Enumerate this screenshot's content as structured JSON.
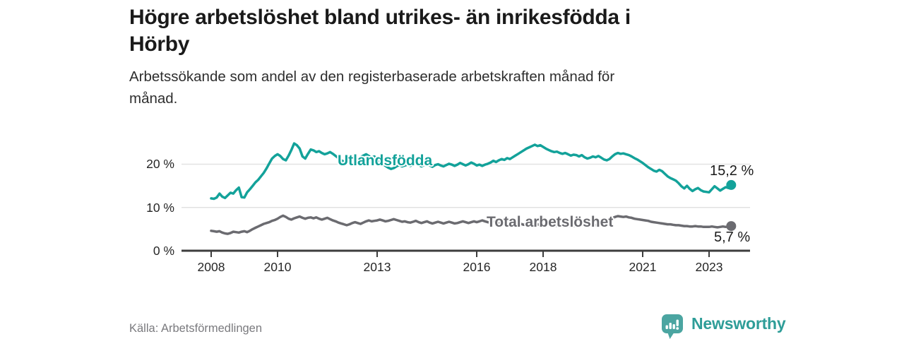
{
  "header": {
    "title_lines": [
      "Högre arbetslöshet bland utrikes- än inrikesfödda i",
      "Hörby"
    ],
    "subtitle_lines": [
      "Arbetssökande som andel av den registerbaserade arbetskraften månad för",
      "månad."
    ]
  },
  "footer": {
    "source": "Källa: Arbetsförmedlingen",
    "brand": "Newsworthy"
  },
  "colors": {
    "foreign_born_line": "#13a29a",
    "total_line": "#6b6b70",
    "axis": "#3d3d3d",
    "gridline": "#e2e2e2",
    "text_dark": "#1a1a1a",
    "brand_icon": "#4ba5a1",
    "brand_text": "#2e9d98"
  },
  "chart_data": {
    "type": "line",
    "title": "Högre arbetslöshet bland utrikes- än inrikesfödda i Hörby",
    "subtitle": "Arbetssökande som andel av den registerbaserade arbetskraften månad för månad.",
    "x_unit": "month",
    "x_start_year": 2008,
    "x_end_label": "2023 (sep)",
    "x_ticks": [
      2008,
      2010,
      2013,
      2016,
      2018,
      2021,
      2023
    ],
    "y_ticks": [
      {
        "label": "0 %",
        "value": 0
      },
      {
        "label": "10 %",
        "value": 10
      },
      {
        "label": "20 %",
        "value": 20
      }
    ],
    "ylim": [
      0,
      26
    ],
    "grid": "horizontal-only",
    "legend_position": "inline-labels",
    "series": [
      {
        "name": "Utlandsfödda",
        "color": "#13a29a",
        "end_value_label": "15,2 %",
        "values": [
          12.1,
          12.0,
          12.3,
          13.2,
          12.5,
          12.2,
          12.8,
          13.4,
          13.2,
          14.0,
          14.6,
          12.4,
          12.3,
          13.5,
          14.2,
          15.0,
          15.8,
          16.4,
          17.2,
          18.0,
          19.0,
          20.2,
          21.3,
          21.9,
          22.3,
          21.9,
          21.2,
          20.9,
          22.0,
          23.3,
          24.8,
          24.4,
          23.6,
          21.8,
          21.3,
          22.4,
          23.4,
          23.2,
          22.8,
          23.0,
          22.6,
          22.3,
          22.5,
          22.8,
          22.4,
          21.9,
          21.4,
          20.9,
          20.6,
          20.3,
          20.5,
          21.0,
          20.7,
          21.2,
          21.6,
          22.0,
          22.3,
          21.9,
          21.5,
          21.8,
          21.2,
          20.6,
          20.0,
          19.6,
          19.2,
          18.9,
          19.1,
          19.5,
          19.8,
          19.5,
          19.7,
          19.9,
          19.6,
          19.9,
          20.2,
          19.8,
          19.5,
          19.8,
          20.1,
          19.7,
          19.4,
          19.8,
          20.0,
          19.7,
          19.5,
          19.8,
          20.1,
          19.9,
          19.6,
          19.9,
          20.3,
          20.0,
          19.7,
          20.0,
          20.4,
          20.1,
          19.7,
          19.9,
          19.6,
          19.9,
          20.1,
          20.4,
          20.8,
          20.5,
          20.9,
          21.2,
          21.0,
          21.4,
          21.2,
          21.6,
          22.0,
          22.4,
          22.8,
          23.2,
          23.6,
          23.9,
          24.2,
          24.5,
          24.2,
          24.4,
          24.0,
          23.6,
          23.3,
          23.0,
          22.8,
          22.9,
          22.6,
          22.4,
          22.6,
          22.3,
          22.0,
          22.2,
          22.1,
          21.8,
          22.1,
          21.6,
          21.3,
          21.5,
          21.8,
          21.6,
          21.9,
          21.5,
          21.1,
          20.9,
          21.2,
          21.8,
          22.3,
          22.6,
          22.4,
          22.5,
          22.3,
          22.1,
          21.8,
          21.4,
          21.1,
          20.7,
          20.3,
          19.8,
          19.3,
          18.9,
          18.5,
          18.3,
          18.7,
          18.4,
          17.8,
          17.2,
          16.8,
          16.5,
          16.2,
          15.6,
          14.9,
          14.4,
          15.0,
          14.3,
          13.8,
          14.2,
          14.5,
          14.0,
          13.7,
          13.6,
          13.5,
          14.2,
          14.9,
          14.4,
          13.9,
          14.3,
          14.7,
          14.5,
          15.2
        ]
      },
      {
        "name": "Total arbetslöshet",
        "color": "#6b6b70",
        "end_value_label": "5,7 %",
        "values": [
          4.6,
          4.5,
          4.4,
          4.5,
          4.2,
          4.0,
          3.9,
          4.1,
          4.4,
          4.3,
          4.2,
          4.4,
          4.5,
          4.3,
          4.6,
          5.0,
          5.3,
          5.6,
          5.9,
          6.2,
          6.4,
          6.6,
          6.9,
          7.1,
          7.4,
          7.8,
          8.1,
          7.8,
          7.4,
          7.2,
          7.5,
          7.7,
          7.9,
          7.6,
          7.4,
          7.6,
          7.7,
          7.5,
          7.7,
          7.4,
          7.2,
          7.4,
          7.6,
          7.3,
          7.0,
          6.8,
          6.5,
          6.3,
          6.1,
          5.9,
          6.1,
          6.4,
          6.6,
          6.4,
          6.2,
          6.5,
          6.8,
          7.0,
          6.8,
          6.9,
          7.0,
          7.2,
          7.0,
          6.8,
          6.9,
          7.1,
          7.3,
          7.1,
          6.9,
          6.7,
          6.8,
          6.6,
          6.5,
          6.7,
          6.9,
          6.6,
          6.4,
          6.6,
          6.8,
          6.5,
          6.3,
          6.5,
          6.7,
          6.5,
          6.3,
          6.5,
          6.7,
          6.5,
          6.3,
          6.4,
          6.6,
          6.8,
          6.6,
          6.4,
          6.6,
          6.8,
          6.6,
          6.8,
          7.0,
          6.8,
          6.6,
          6.5,
          6.7,
          6.5,
          6.3,
          6.4,
          6.6,
          6.4,
          6.2,
          6.4,
          6.6,
          6.4,
          6.2,
          6.0,
          6.2,
          6.0,
          5.8,
          5.9,
          6.1,
          5.9,
          5.8,
          6.0,
          6.1,
          5.9,
          5.7,
          5.8,
          6.0,
          5.8,
          5.6,
          5.7,
          5.9,
          5.8,
          5.7,
          5.9,
          6.0,
          5.8,
          5.7,
          5.8,
          6.0,
          5.9,
          6.1,
          6.3,
          6.5,
          6.8,
          7.2,
          7.5,
          7.8,
          8.0,
          7.9,
          7.8,
          7.9,
          7.7,
          7.6,
          7.4,
          7.3,
          7.2,
          7.1,
          7.0,
          6.9,
          6.7,
          6.6,
          6.5,
          6.4,
          6.3,
          6.2,
          6.1,
          6.1,
          6.0,
          5.9,
          5.9,
          5.8,
          5.7,
          5.7,
          5.6,
          5.6,
          5.7,
          5.6,
          5.6,
          5.5,
          5.5,
          5.5,
          5.6,
          5.5,
          5.4,
          5.5,
          5.6,
          5.5,
          5.6,
          5.7
        ]
      }
    ]
  }
}
